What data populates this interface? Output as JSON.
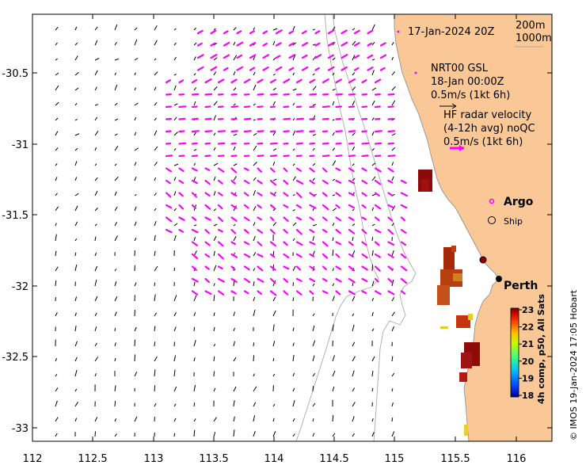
{
  "map": {
    "x_ticks": [
      "112",
      "112.5",
      "113",
      "113.5",
      "114",
      "114.5",
      "115",
      "115.5",
      "116"
    ],
    "y_ticks": [
      "-30.5",
      "-31",
      "-31.5",
      "-32",
      "-32.5",
      "-33"
    ],
    "lon_range": [
      112,
      116.3
    ],
    "lat_range": [
      -30.05,
      -33.1
    ],
    "colors": {
      "land": "#f9c896",
      "hf_radar_arrow": "#ff00ff",
      "model_arrow": "#000000",
      "isobath": "#aaaaaa",
      "frame": "#000000"
    }
  },
  "labels": {
    "date_label": "17-Jan-2024 20Z",
    "isobath_200": "200m",
    "isobath_1000": "1000m",
    "model_name": "NRT00 GSL",
    "model_time": "18-Jan 00:00Z",
    "model_scale": "0.5m/s (1kt 6h)",
    "hf_title": "HF radar velocity",
    "hf_avg": "(4-12h avg) noQC",
    "hf_scale": "0.5m/s (1kt 6h)",
    "argo_label": "Argo",
    "ship_label": "Ship",
    "city_label": "Perth"
  },
  "colorbar": {
    "title": "4h comp, p50, All Sats",
    "ticks": [
      "23",
      "22",
      "21",
      "20",
      "19",
      "18"
    ],
    "range": [
      18,
      23
    ],
    "colors": [
      "#00008f",
      "#0040ff",
      "#00c0ff",
      "#40ff80",
      "#c0ff00",
      "#ffc000",
      "#ff4000",
      "#c00000",
      "#800000"
    ]
  },
  "credit": "© IMOS 19-Jan-2024 17:05 Hobart"
}
